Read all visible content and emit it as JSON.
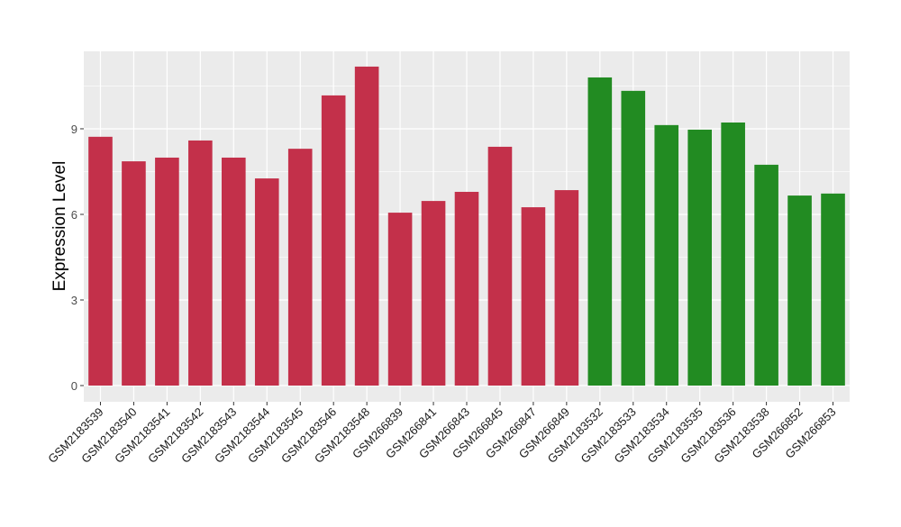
{
  "chart_data": {
    "type": "bar",
    "title": "",
    "xlabel": "",
    "ylabel": "Expression Level",
    "ylim": [
      0,
      11.7
    ],
    "yticks": [
      0,
      3,
      6,
      9
    ],
    "grid": true,
    "legend": "none",
    "categories": [
      "GSM2183539",
      "GSM2183540",
      "GSM2183541",
      "GSM2183542",
      "GSM2183543",
      "GSM2183544",
      "GSM2183545",
      "GSM2183546",
      "GSM2183548",
      "GSM266839",
      "GSM266841",
      "GSM266843",
      "GSM266845",
      "GSM266847",
      "GSM266849",
      "GSM2183532",
      "GSM2183533",
      "GSM2183534",
      "GSM2183535",
      "GSM2183536",
      "GSM2183538",
      "GSM266852",
      "GSM266853"
    ],
    "values": [
      8.72,
      7.86,
      7.99,
      8.59,
      7.99,
      7.26,
      8.3,
      10.17,
      11.18,
      6.06,
      6.47,
      6.79,
      8.37,
      6.25,
      6.85,
      10.8,
      10.33,
      9.13,
      8.97,
      9.22,
      7.74,
      6.66,
      6.73
    ],
    "groups": [
      "a",
      "a",
      "a",
      "a",
      "a",
      "a",
      "a",
      "a",
      "a",
      "a",
      "a",
      "a",
      "a",
      "a",
      "a",
      "b",
      "b",
      "b",
      "b",
      "b",
      "b",
      "b",
      "b"
    ],
    "colors": {
      "a": "#C3304A",
      "b": "#228B22"
    },
    "panel_background": "#EBEBEB",
    "grid_color": "#FFFFFF"
  }
}
